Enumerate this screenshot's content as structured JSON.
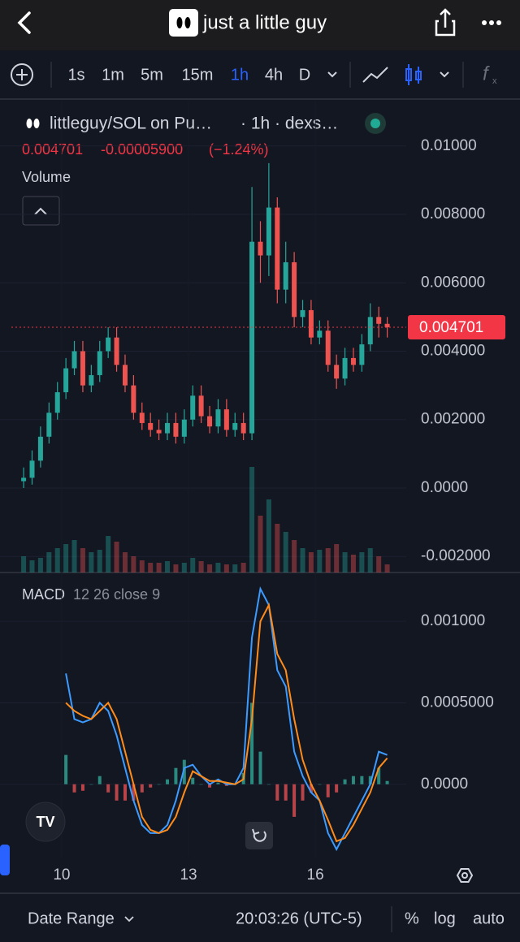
{
  "header": {
    "title": "just a little guy"
  },
  "toolbar": {
    "intervals": [
      "1s",
      "1m",
      "5m",
      "15m",
      "1h",
      "4h",
      "D"
    ],
    "active": "1h"
  },
  "chart_data": [
    {
      "type": "candlestick",
      "title": "littleguy/SOL on Pu…",
      "subtitle": "· 1h · dexs…",
      "last_price": 0.004701,
      "change": {
        "value": -5.9e-05,
        "label": "-0.00005900"
      },
      "change_pct": "(−1.24%)",
      "volume_label": "Volume",
      "up_color": "#26a69a",
      "down_color": "#ef5350",
      "xlim": [
        8.81,
        18.15
      ],
      "ylim": [
        -0.00247,
        0.0113
      ],
      "yticks": [
        {
          "value": 0.01,
          "label": "0.01000"
        },
        {
          "value": 0.008,
          "label": "0.008000"
        },
        {
          "value": 0.006,
          "label": "0.006000"
        },
        {
          "value": 0.004,
          "label": "0.004000"
        },
        {
          "value": 0.002,
          "label": "0.002000"
        },
        {
          "value": 0,
          "label": "0.0000"
        },
        {
          "value": -0.002,
          "label": "-0.002000"
        }
      ],
      "grid": true,
      "x": [
        9.1,
        9.3,
        9.5,
        9.7,
        9.9,
        10.1,
        10.3,
        10.5,
        10.7,
        10.9,
        11.1,
        11.3,
        11.5,
        11.7,
        11.9,
        12.1,
        12.3,
        12.5,
        12.7,
        12.9,
        13.1,
        13.3,
        13.5,
        13.7,
        13.9,
        14.1,
        14.3,
        14.5,
        14.7,
        14.9,
        15.1,
        15.3,
        15.5,
        15.7,
        15.9,
        16.1,
        16.3,
        16.5,
        16.7,
        16.9,
        17.1,
        17.3,
        17.5,
        17.7
      ],
      "open": [
        0.0002,
        0.0003,
        0.0008,
        0.0015,
        0.0022,
        0.0028,
        0.0035,
        0.004,
        0.003,
        0.0033,
        0.004,
        0.0044,
        0.0036,
        0.003,
        0.0022,
        0.0019,
        0.0017,
        0.0016,
        0.0019,
        0.0015,
        0.002,
        0.0027,
        0.0021,
        0.0018,
        0.0023,
        0.0017,
        0.0019,
        0.0016,
        0.0072,
        0.0068,
        0.0082,
        0.0058,
        0.0066,
        0.005,
        0.0052,
        0.0044,
        0.0046,
        0.0036,
        0.0032,
        0.0038,
        0.0036,
        0.0042,
        0.005,
        0.0048
      ],
      "high": [
        0.0006,
        0.0011,
        0.0018,
        0.0025,
        0.0031,
        0.0038,
        0.0043,
        0.0043,
        0.0036,
        0.0043,
        0.0047,
        0.0047,
        0.0039,
        0.0033,
        0.0025,
        0.0022,
        0.002,
        0.0022,
        0.0022,
        0.0023,
        0.003,
        0.003,
        0.0024,
        0.0026,
        0.0026,
        0.0022,
        0.0022,
        0.0088,
        0.0078,
        0.0095,
        0.0085,
        0.0072,
        0.0069,
        0.0055,
        0.0055,
        0.0049,
        0.0049,
        0.0039,
        0.0041,
        0.0041,
        0.0045,
        0.0054,
        0.0053,
        0.005
      ],
      "low": [
        0.0,
        0.0001,
        0.0006,
        0.0013,
        0.002,
        0.0026,
        0.0033,
        0.0028,
        0.0028,
        0.0031,
        0.0038,
        0.0034,
        0.0028,
        0.002,
        0.0017,
        0.0015,
        0.0014,
        0.0014,
        0.0013,
        0.0013,
        0.0018,
        0.0019,
        0.0016,
        0.0016,
        0.0015,
        0.0015,
        0.0014,
        0.0014,
        0.006,
        0.0062,
        0.0054,
        0.0054,
        0.0047,
        0.0047,
        0.0042,
        0.0042,
        0.0034,
        0.0029,
        0.003,
        0.0034,
        0.0034,
        0.004,
        0.0044,
        0.0044
      ],
      "close": [
        0.0003,
        0.0008,
        0.0015,
        0.0022,
        0.0028,
        0.0035,
        0.004,
        0.003,
        0.0033,
        0.004,
        0.0044,
        0.0036,
        0.003,
        0.0022,
        0.0019,
        0.0017,
        0.0016,
        0.0019,
        0.0015,
        0.002,
        0.0027,
        0.0021,
        0.0018,
        0.0023,
        0.0017,
        0.0019,
        0.0016,
        0.0072,
        0.0068,
        0.0082,
        0.0058,
        0.0066,
        0.005,
        0.0052,
        0.0044,
        0.0046,
        0.0036,
        0.0032,
        0.0038,
        0.0036,
        0.0042,
        0.005,
        0.0048,
        0.004701
      ],
      "volume": [
        20,
        15,
        18,
        25,
        30,
        35,
        40,
        30,
        25,
        28,
        45,
        38,
        25,
        20,
        15,
        12,
        12,
        14,
        10,
        12,
        18,
        14,
        10,
        12,
        10,
        10,
        12,
        130,
        70,
        90,
        60,
        50,
        40,
        30,
        25,
        28,
        30,
        35,
        25,
        22,
        25,
        30,
        20,
        10
      ]
    },
    {
      "type": "macd",
      "title": "MACD",
      "subtitle": "12 26 close 9",
      "xlim": [
        8.81,
        18.15
      ],
      "xticks": [
        10,
        13,
        16
      ],
      "ylim": [
        -0.000445,
        0.0013
      ],
      "yticks": [
        {
          "value": 0.001,
          "label": "0.001000"
        },
        {
          "value": 0.0005,
          "label": "0.0005000"
        },
        {
          "value": 0,
          "label": "0.0000"
        }
      ],
      "grid": true,
      "x": [
        9.1,
        9.3,
        9.5,
        9.7,
        9.9,
        10.1,
        10.3,
        10.5,
        10.7,
        10.9,
        11.1,
        11.3,
        11.5,
        11.7,
        11.9,
        12.1,
        12.3,
        12.5,
        12.7,
        12.9,
        13.1,
        13.3,
        13.5,
        13.7,
        13.9,
        14.1,
        14.3,
        14.5,
        14.7,
        14.9,
        15.1,
        15.3,
        15.5,
        15.7,
        15.9,
        16.1,
        16.3,
        16.5,
        16.7,
        16.9,
        17.1,
        17.3,
        17.5,
        17.7
      ],
      "series": [
        {
          "color": "#3d9bff",
          "values": [
            null,
            null,
            null,
            null,
            null,
            0.00068,
            0.0004,
            0.00038,
            0.0004,
            0.0005,
            0.00045,
            0.0003,
            0.0001,
            -0.0001,
            -0.00025,
            -0.0003,
            -0.0003,
            -0.00025,
            -0.0001,
            0.0001,
            0.00012,
            5e-05,
            0,
            3e-05,
            0,
            0,
            0.0001,
            0.0009,
            0.0012,
            0.0011,
            0.0007,
            0.0006,
            0.0002,
            5e-05,
            -5e-05,
            -0.0001,
            -0.0003,
            -0.0004,
            -0.0003,
            -0.0002,
            -0.0001,
            0,
            0.0002,
            0.00018
          ]
        },
        {
          "color": "#ff8c1a",
          "values": [
            null,
            null,
            null,
            null,
            null,
            0.0005,
            0.00045,
            0.00042,
            0.0004,
            0.00045,
            0.0005,
            0.0004,
            0.0002,
            0,
            -0.0002,
            -0.00028,
            -0.0003,
            -0.00028,
            -0.0002,
            -5e-05,
            8e-05,
            5e-05,
            2e-05,
            2e-05,
            1e-05,
            0,
            3e-05,
            0.0004,
            0.001,
            0.0011,
            0.0008,
            0.0007,
            0.0004,
            0.00015,
            0,
            -0.0001,
            -0.00022,
            -0.00035,
            -0.00033,
            -0.00025,
            -0.00015,
            -5e-05,
            0.0001,
            0.00016
          ]
        }
      ],
      "histogram": {
        "up_color": "#2a8a7f",
        "down_color": "#b8444a",
        "values": [
          null,
          null,
          null,
          null,
          null,
          0.00018,
          -5e-05,
          -4e-05,
          0,
          5e-05,
          -5e-05,
          -0.0001,
          -0.0001,
          -0.0001,
          -5e-05,
          -2e-05,
          0,
          3e-05,
          0.0001,
          0.00015,
          4e-05,
          0,
          -2e-05,
          1e-05,
          -1e-05,
          0,
          7e-05,
          0.0005,
          0.0002,
          0,
          -0.0001,
          -0.0001,
          -0.0002,
          -0.0001,
          -5e-05,
          0,
          -8e-05,
          -5e-05,
          3e-05,
          5e-05,
          5e-05,
          5e-05,
          0.0001,
          2e-05
        ]
      }
    }
  ],
  "bottom_bar": {
    "date_range": "Date Range",
    "time": "20:03:26 (UTC-5)",
    "percent": "%",
    "log": "log",
    "auto": "auto"
  }
}
